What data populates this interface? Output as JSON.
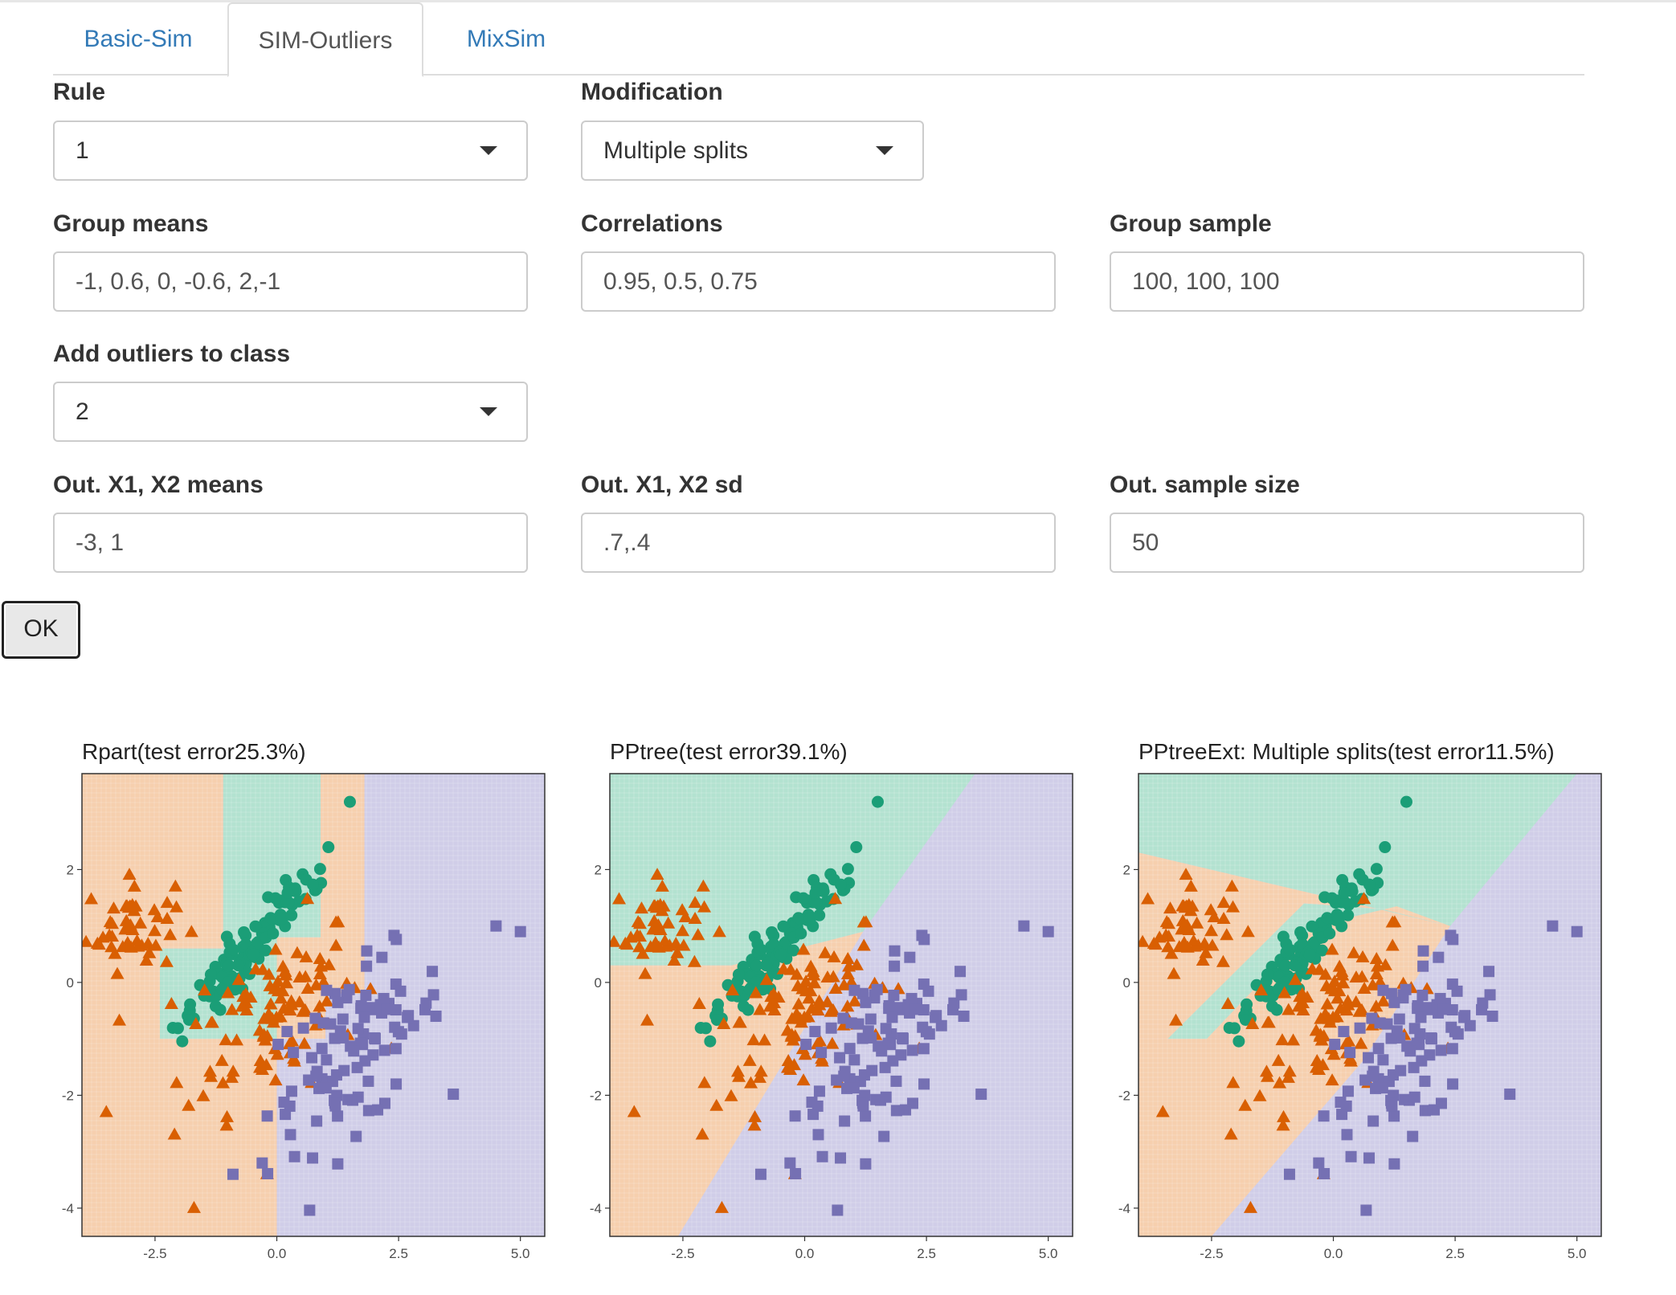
{
  "tabs": [
    {
      "label": "Basic-Sim",
      "active": false
    },
    {
      "label": "SIM-Outliers",
      "active": true
    },
    {
      "label": "MixSim",
      "active": false
    }
  ],
  "form": {
    "rule": {
      "label": "Rule",
      "value": "1"
    },
    "modification": {
      "label": "Modification",
      "value": "Multiple splits"
    },
    "group_means": {
      "label": "Group means",
      "value": "-1, 0.6, 0, -0.6, 2,-1"
    },
    "correlations": {
      "label": "Correlations",
      "value": "0.95, 0.5, 0.75"
    },
    "group_sample": {
      "label": "Group sample",
      "value": "100, 100, 100"
    },
    "add_outliers": {
      "label": "Add outliers to class",
      "value": "2"
    },
    "out_means": {
      "label": "Out. X1, X2 means",
      "value": "-3, 1"
    },
    "out_sd": {
      "label": "Out. X1, X2 sd",
      "value": ".7,.4"
    },
    "out_size": {
      "label": "Out. sample size",
      "value": "50"
    },
    "ok_label": "OK"
  },
  "colors": {
    "class1": "#1b9e77",
    "class2": "#d95f02",
    "class3": "#7570b3",
    "region1": "#b3e2d0",
    "region2": "#f6cfae",
    "region3": "#d0cde8"
  },
  "chart_data": [
    {
      "type": "scatter",
      "title": "Rpart(test error25.3%)",
      "xlim": [
        -4.0,
        5.5
      ],
      "ylim": [
        -4.5,
        3.7
      ],
      "x_ticks": [
        -2.5,
        0.0,
        2.5,
        5.0
      ],
      "x_tick_labels": [
        "-2.5",
        "0.0",
        "2.5",
        "5.0"
      ],
      "y_ticks": [
        -4,
        -2,
        0,
        2
      ],
      "y_tick_labels": [
        "-4",
        "-2",
        "0",
        "2"
      ],
      "regions": [
        {
          "class": 2,
          "polygon": [
            [
              -4.0,
              -4.5
            ],
            [
              0.0,
              -4.5
            ],
            [
              0.0,
              -1.0
            ],
            [
              -2.4,
              -1.0
            ],
            [
              -2.4,
              0.6
            ],
            [
              -1.1,
              0.6
            ],
            [
              -1.1,
              3.7
            ],
            [
              -4.0,
              3.7
            ]
          ]
        },
        {
          "class": 1,
          "polygon": [
            [
              -1.1,
              0.6
            ],
            [
              -2.4,
              0.6
            ],
            [
              -2.4,
              -1.0
            ],
            [
              0.0,
              -1.0
            ],
            [
              0.0,
              0.8
            ],
            [
              0.9,
              0.8
            ],
            [
              0.9,
              3.7
            ],
            [
              -1.1,
              3.7
            ]
          ]
        },
        {
          "class": 2,
          "polygon": [
            [
              0.0,
              -1.0
            ],
            [
              0.0,
              0.8
            ],
            [
              0.9,
              0.8
            ],
            [
              0.9,
              3.7
            ],
            [
              1.8,
              3.7
            ],
            [
              1.8,
              -0.2
            ],
            [
              1.0,
              -0.2
            ],
            [
              1.0,
              -1.0
            ]
          ]
        },
        {
          "class": 3,
          "polygon": [
            [
              0.0,
              -4.5
            ],
            [
              5.5,
              -4.5
            ],
            [
              5.5,
              3.7
            ],
            [
              1.8,
              3.7
            ],
            [
              1.8,
              -0.2
            ],
            [
              1.0,
              -0.2
            ],
            [
              1.0,
              -1.0
            ],
            [
              0.0,
              -1.0
            ]
          ]
        }
      ]
    },
    {
      "type": "scatter",
      "title": "PPtree(test error39.1%)",
      "xlim": [
        -4.0,
        5.5
      ],
      "ylim": [
        -4.5,
        3.7
      ],
      "x_ticks": [
        -2.5,
        0.0,
        2.5,
        5.0
      ],
      "x_tick_labels": [
        "-2.5",
        "0.0",
        "2.5",
        "5.0"
      ],
      "y_ticks": [
        -4,
        -2,
        0,
        2
      ],
      "y_tick_labels": [
        "-4",
        "-2",
        "0",
        "2"
      ],
      "regions": [
        {
          "class": 1,
          "polygon": [
            [
              -4.0,
              3.7
            ],
            [
              3.5,
              3.7
            ],
            [
              1.2,
              0.9
            ],
            [
              -1.5,
              0.3
            ],
            [
              -4.0,
              0.3
            ]
          ]
        },
        {
          "class": 2,
          "polygon": [
            [
              -4.0,
              0.3
            ],
            [
              -1.5,
              0.3
            ],
            [
              1.2,
              0.9
            ],
            [
              -2.6,
              -4.5
            ],
            [
              -4.0,
              -4.5
            ]
          ]
        },
        {
          "class": 3,
          "polygon": [
            [
              -2.6,
              -4.5
            ],
            [
              5.5,
              -4.5
            ],
            [
              5.5,
              3.7
            ],
            [
              3.5,
              3.7
            ],
            [
              1.2,
              0.9
            ]
          ]
        }
      ]
    },
    {
      "type": "scatter",
      "title": "PPtreeExt: Multiple splits(test error11.5%)",
      "xlim": [
        -4.0,
        5.5
      ],
      "ylim": [
        -4.5,
        3.7
      ],
      "x_ticks": [
        -2.5,
        0.0,
        2.5,
        5.0
      ],
      "x_tick_labels": [
        "-2.5",
        "0.0",
        "2.5",
        "5.0"
      ],
      "y_ticks": [
        -4,
        -2,
        0,
        2
      ],
      "y_tick_labels": [
        "-4",
        "-2",
        "0",
        "2"
      ],
      "regions": [
        {
          "class": 1,
          "polygon": [
            [
              -4.0,
              3.7
            ],
            [
              5.0,
              3.7
            ],
            [
              2.4,
              1.0
            ],
            [
              -4.0,
              2.3
            ]
          ]
        },
        {
          "class": 2,
          "polygon": [
            [
              -4.0,
              2.3
            ],
            [
              2.4,
              1.0
            ],
            [
              1.0,
              1.3
            ],
            [
              -0.6,
              1.4
            ],
            [
              -3.4,
              -1.0
            ],
            [
              -2.6,
              -1.0
            ],
            [
              -0.4,
              1.0
            ],
            [
              1.3,
              1.35
            ],
            [
              2.4,
              1.0
            ],
            [
              0.6,
              -1.4
            ],
            [
              -2.5,
              -4.5
            ],
            [
              -4.0,
              -4.5
            ]
          ]
        },
        {
          "class": 1,
          "polygon": [
            [
              -0.6,
              1.4
            ],
            [
              1.0,
              1.3
            ],
            [
              1.3,
              1.35
            ],
            [
              -0.4,
              1.0
            ],
            [
              -2.6,
              -1.0
            ],
            [
              -3.4,
              -1.0
            ]
          ]
        },
        {
          "class": 3,
          "polygon": [
            [
              -2.5,
              -4.5
            ],
            [
              5.5,
              -4.5
            ],
            [
              5.5,
              3.7
            ],
            [
              5.0,
              3.7
            ],
            [
              2.4,
              1.0
            ],
            [
              0.6,
              -1.4
            ]
          ]
        }
      ]
    }
  ]
}
